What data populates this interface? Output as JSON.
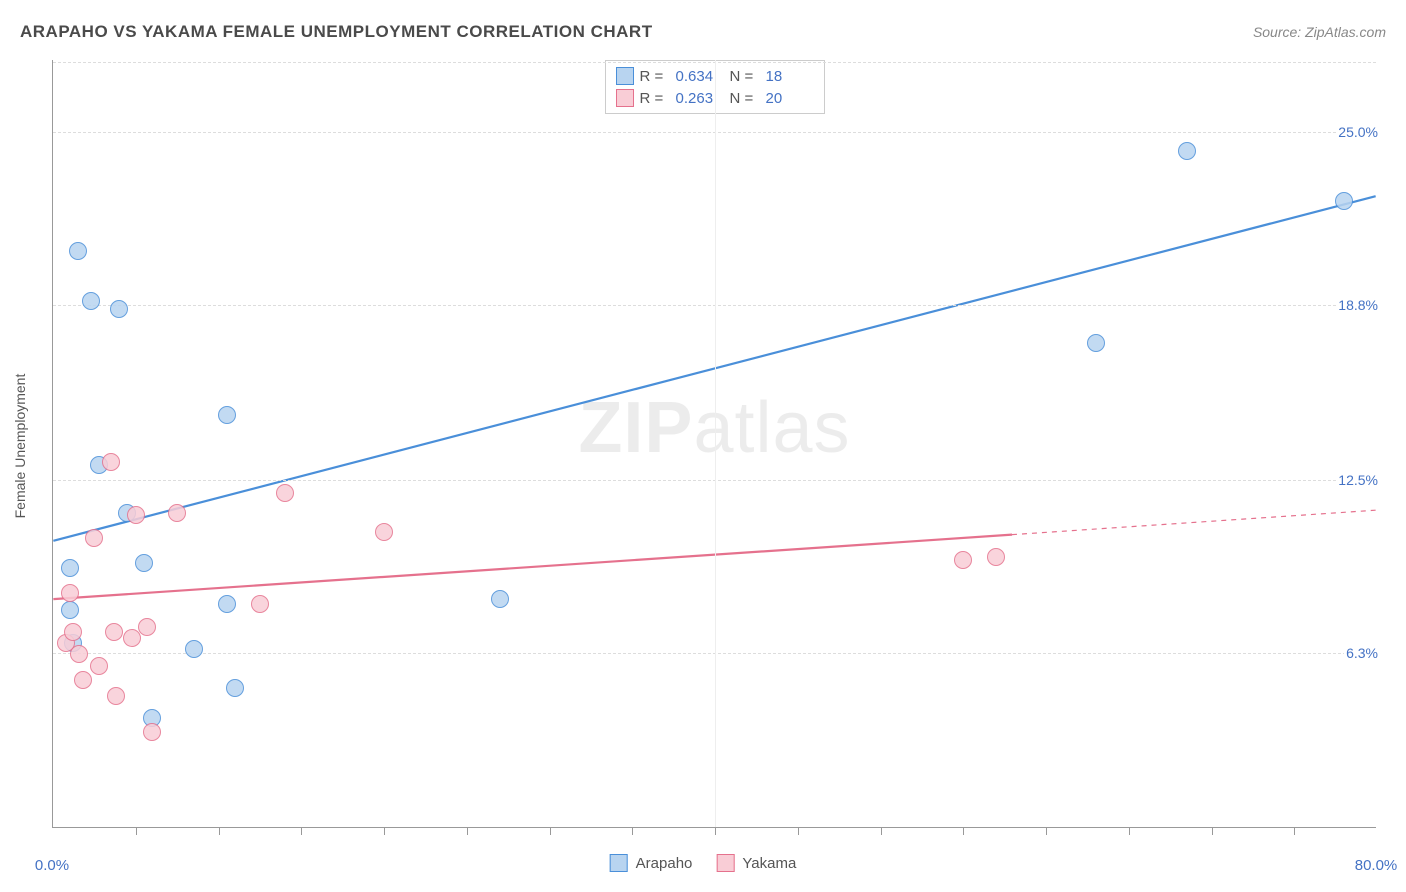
{
  "title": "ARAPAHO VS YAKAMA FEMALE UNEMPLOYMENT CORRELATION CHART",
  "source": "Source: ZipAtlas.com",
  "watermark_bold": "ZIP",
  "watermark_rest": "atlas",
  "y_axis_title": "Female Unemployment",
  "chart": {
    "type": "scatter",
    "x_min": 0,
    "x_max": 80,
    "y_min": 0,
    "y_max": 27.6,
    "x_label_min": "0.0%",
    "x_label_max": "80.0%",
    "x_ticks_minor": [
      5,
      10,
      15,
      20,
      25,
      30,
      35,
      45,
      50,
      55,
      60,
      65,
      70,
      75
    ],
    "x_ticks_major": [
      40
    ],
    "y_grid": [
      {
        "v": 6.3,
        "label": "6.3%"
      },
      {
        "v": 12.5,
        "label": "12.5%"
      },
      {
        "v": 18.8,
        "label": "18.8%"
      },
      {
        "v": 25.0,
        "label": "25.0%"
      }
    ],
    "background_color": "#ffffff",
    "grid_color": "#dddddd",
    "axis_color": "#999999",
    "label_color": "#4472c4",
    "point_radius": 9,
    "point_border_width": 1.2,
    "trend_line_width": 2.2
  },
  "series": [
    {
      "name": "Arapaho",
      "fill": "#b8d4f0",
      "stroke": "#4a8fd9",
      "legend_fill": "#b8d4f0",
      "legend_stroke": "#4a8fd9",
      "stats": {
        "R": "0.634",
        "N": "18"
      },
      "trend": {
        "x1": 0,
        "y1": 10.3,
        "x2": 80,
        "y2": 22.7,
        "solid_to_x": 80
      },
      "points": [
        {
          "x": 1.0,
          "y": 7.8
        },
        {
          "x": 1.0,
          "y": 9.3
        },
        {
          "x": 1.2,
          "y": 6.6
        },
        {
          "x": 1.5,
          "y": 20.7
        },
        {
          "x": 2.3,
          "y": 18.9
        },
        {
          "x": 2.8,
          "y": 13.0
        },
        {
          "x": 4.0,
          "y": 18.6
        },
        {
          "x": 4.5,
          "y": 11.3
        },
        {
          "x": 5.5,
          "y": 9.5
        },
        {
          "x": 6.0,
          "y": 3.9
        },
        {
          "x": 8.5,
          "y": 6.4
        },
        {
          "x": 10.5,
          "y": 14.8
        },
        {
          "x": 10.5,
          "y": 8.0
        },
        {
          "x": 11.0,
          "y": 5.0
        },
        {
          "x": 27.0,
          "y": 8.2
        },
        {
          "x": 63.0,
          "y": 17.4
        },
        {
          "x": 68.5,
          "y": 24.3
        },
        {
          "x": 78.0,
          "y": 22.5
        }
      ]
    },
    {
      "name": "Yakama",
      "fill": "#f9cdd6",
      "stroke": "#e5718d",
      "legend_fill": "#f9cdd6",
      "legend_stroke": "#e5718d",
      "stats": {
        "R": "0.263",
        "N": "20"
      },
      "trend": {
        "x1": 0,
        "y1": 8.2,
        "x2": 80,
        "y2": 11.4,
        "solid_to_x": 58
      },
      "points": [
        {
          "x": 0.8,
          "y": 6.6
        },
        {
          "x": 1.0,
          "y": 8.4
        },
        {
          "x": 1.2,
          "y": 7.0
        },
        {
          "x": 1.6,
          "y": 6.2
        },
        {
          "x": 1.8,
          "y": 5.3
        },
        {
          "x": 2.5,
          "y": 10.4
        },
        {
          "x": 2.8,
          "y": 5.8
        },
        {
          "x": 3.5,
          "y": 13.1
        },
        {
          "x": 3.7,
          "y": 7.0
        },
        {
          "x": 3.8,
          "y": 4.7
        },
        {
          "x": 4.8,
          "y": 6.8
        },
        {
          "x": 5.0,
          "y": 11.2
        },
        {
          "x": 5.7,
          "y": 7.2
        },
        {
          "x": 6.0,
          "y": 3.4
        },
        {
          "x": 7.5,
          "y": 11.3
        },
        {
          "x": 12.5,
          "y": 8.0
        },
        {
          "x": 14.0,
          "y": 12.0
        },
        {
          "x": 20.0,
          "y": 10.6
        },
        {
          "x": 55.0,
          "y": 9.6
        },
        {
          "x": 57.0,
          "y": 9.7
        }
      ]
    }
  ],
  "stat_box": {
    "r_label": "R =",
    "n_label": "N ="
  },
  "legend_title_arapaho": "Arapaho",
  "legend_title_yakama": "Yakama"
}
